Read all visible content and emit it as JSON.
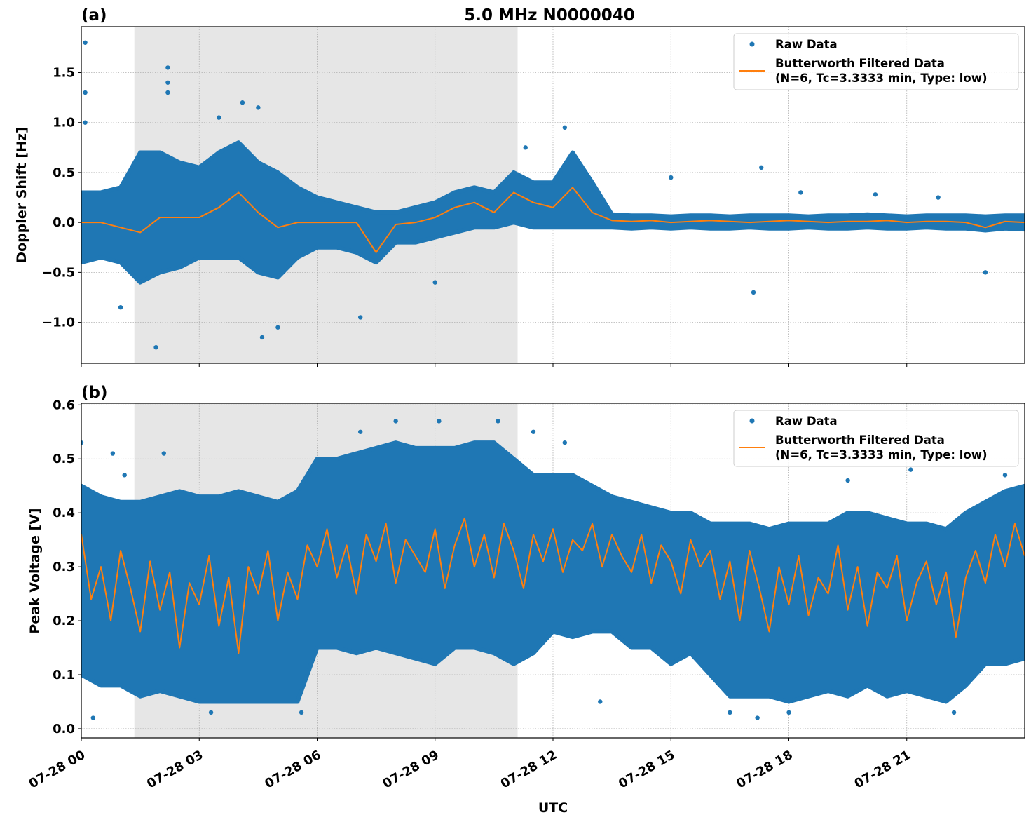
{
  "colors": {
    "raw": "#1f77b4",
    "filtered": "#ff7f0e",
    "shade": "#e6e6e6",
    "grid": "#b0b0b0"
  },
  "chart_data": [
    {
      "type": "scatter+line",
      "panel_label": "(a)",
      "title": "5.0 MHz N0000040",
      "xlabel": "",
      "ylabel": "Doppler Shift [Hz]",
      "xlim": [
        "07-28 00:00",
        "07-29 00:00"
      ],
      "ylim": [
        -1.41,
        1.96
      ],
      "yticks": [
        -1.0,
        -0.5,
        0.0,
        0.5,
        1.0,
        1.5
      ],
      "ytick_labels": [
        "−1.0",
        "−0.5",
        "0.0",
        "0.5",
        "1.0",
        "1.5"
      ],
      "grid": true,
      "shaded_interval": [
        "07-28 01:21",
        "07-28 11:06"
      ],
      "legend": {
        "position": "top-right",
        "entries": [
          "Raw Data",
          "Butterworth Filtered Data",
          "(N=6, Tc=3.3333 min, Type: low)"
        ]
      },
      "raw_band": {
        "time": [
          "07-28 00:00",
          "07-28 00:30",
          "07-28 01:00",
          "07-28 01:30",
          "07-28 02:00",
          "07-28 02:30",
          "07-28 03:00",
          "07-28 03:30",
          "07-28 04:00",
          "07-28 04:30",
          "07-28 05:00",
          "07-28 05:30",
          "07-28 06:00",
          "07-28 06:30",
          "07-28 07:00",
          "07-28 07:30",
          "07-28 08:00",
          "07-28 08:30",
          "07-28 09:00",
          "07-28 09:30",
          "07-28 10:00",
          "07-28 10:30",
          "07-28 11:00",
          "07-28 11:30",
          "07-28 12:00",
          "07-28 12:30",
          "07-28 13:00",
          "07-28 13:30",
          "07-28 14:00",
          "07-28 14:30",
          "07-28 15:00",
          "07-28 15:30",
          "07-28 16:00",
          "07-28 16:30",
          "07-28 17:00",
          "07-28 17:30",
          "07-28 18:00",
          "07-28 18:30",
          "07-28 19:00",
          "07-28 19:30",
          "07-28 20:00",
          "07-28 20:30",
          "07-28 21:00",
          "07-28 21:30",
          "07-28 22:00",
          "07-28 22:30",
          "07-28 23:00",
          "07-28 23:30",
          "07-29 00:00"
        ],
        "low": [
          -0.4,
          -0.35,
          -0.4,
          -0.6,
          -0.5,
          -0.45,
          -0.35,
          -0.35,
          -0.35,
          -0.5,
          -0.55,
          -0.35,
          -0.25,
          -0.25,
          -0.3,
          -0.4,
          -0.2,
          -0.2,
          -0.15,
          -0.1,
          -0.05,
          -0.05,
          0,
          -0.05,
          -0.05,
          -0.05,
          -0.05,
          -0.05,
          -0.06,
          -0.05,
          -0.06,
          -0.05,
          -0.06,
          -0.06,
          -0.05,
          -0.06,
          -0.06,
          -0.05,
          -0.06,
          -0.06,
          -0.05,
          -0.06,
          -0.06,
          -0.05,
          -0.06,
          -0.06,
          -0.08,
          -0.06,
          -0.07
        ],
        "high": [
          0.3,
          0.3,
          0.35,
          0.7,
          0.7,
          0.6,
          0.55,
          0.7,
          0.8,
          0.6,
          0.5,
          0.35,
          0.25,
          0.2,
          0.15,
          0.1,
          0.1,
          0.15,
          0.2,
          0.3,
          0.35,
          0.3,
          0.5,
          0.4,
          0.4,
          0.7,
          0.4,
          0.08,
          0.07,
          0.07,
          0.06,
          0.07,
          0.07,
          0.06,
          0.07,
          0.07,
          0.07,
          0.06,
          0.07,
          0.07,
          0.08,
          0.07,
          0.06,
          0.07,
          0.07,
          0.07,
          0.06,
          0.07,
          0.07
        ]
      },
      "raw_outliers": [
        [
          "07-28 00:06",
          1.8
        ],
        [
          "07-28 00:06",
          1.3
        ],
        [
          "07-28 00:06",
          1.0
        ],
        [
          "07-28 02:12",
          1.55
        ],
        [
          "07-28 02:12",
          1.4
        ],
        [
          "07-28 02:12",
          1.3
        ],
        [
          "07-28 03:30",
          1.05
        ],
        [
          "07-28 04:06",
          1.2
        ],
        [
          "07-28 04:30",
          1.15
        ],
        [
          "07-28 01:54",
          -1.25
        ],
        [
          "07-28 04:36",
          -1.15
        ],
        [
          "07-28 07:06",
          -0.95
        ],
        [
          "07-28 09:00",
          -0.6
        ],
        [
          "07-28 12:18",
          0.95
        ],
        [
          "07-28 11:18",
          0.75
        ],
        [
          "07-28 17:06",
          -0.7
        ],
        [
          "07-28 17:18",
          0.55
        ],
        [
          "07-28 18:18",
          0.3
        ],
        [
          "07-28 20:12",
          0.28
        ],
        [
          "07-28 23:00",
          -0.5
        ],
        [
          "07-28 15:00",
          0.45
        ],
        [
          "07-28 21:48",
          0.25
        ],
        [
          "07-28 01:00",
          -0.85
        ],
        [
          "07-28 05:00",
          -1.05
        ]
      ],
      "filtered": {
        "time": [
          "07-28 00:00",
          "07-28 00:30",
          "07-28 01:00",
          "07-28 01:30",
          "07-28 02:00",
          "07-28 02:30",
          "07-28 03:00",
          "07-28 03:30",
          "07-28 04:00",
          "07-28 04:30",
          "07-28 05:00",
          "07-28 05:30",
          "07-28 06:00",
          "07-28 06:30",
          "07-28 07:00",
          "07-28 07:30",
          "07-28 08:00",
          "07-28 08:30",
          "07-28 09:00",
          "07-28 09:30",
          "07-28 10:00",
          "07-28 10:30",
          "07-28 11:00",
          "07-28 11:30",
          "07-28 12:00",
          "07-28 12:30",
          "07-28 13:00",
          "07-28 13:30",
          "07-28 14:00",
          "07-28 14:30",
          "07-28 15:00",
          "07-28 15:30",
          "07-28 16:00",
          "07-28 16:30",
          "07-28 17:00",
          "07-28 17:30",
          "07-28 18:00",
          "07-28 18:30",
          "07-28 19:00",
          "07-28 19:30",
          "07-28 20:00",
          "07-28 20:30",
          "07-28 21:00",
          "07-28 21:30",
          "07-28 22:00",
          "07-28 22:30",
          "07-28 23:00",
          "07-28 23:30",
          "07-29 00:00"
        ],
        "values": [
          0,
          0,
          -0.05,
          -0.1,
          0.05,
          0.05,
          0.05,
          0.15,
          0.3,
          0.1,
          -0.05,
          0,
          0,
          0,
          0,
          -0.3,
          -0.02,
          0,
          0.05,
          0.15,
          0.2,
          0.1,
          0.3,
          0.2,
          0.15,
          0.35,
          0.1,
          0.02,
          0.01,
          0.02,
          0.0,
          0.01,
          0.02,
          0.01,
          0.0,
          0.01,
          0.02,
          0.01,
          0.0,
          0.01,
          0.01,
          0.02,
          0.0,
          0.01,
          0.01,
          0.0,
          -0.05,
          0.01,
          0.0
        ]
      }
    },
    {
      "type": "scatter+line",
      "panel_label": "(b)",
      "xlabel": "UTC",
      "ylabel": "Peak Voltage [V]",
      "xlim": [
        "07-28 00:00",
        "07-29 00:00"
      ],
      "ylim": [
        -0.017,
        0.603
      ],
      "yticks": [
        0.0,
        0.1,
        0.2,
        0.3,
        0.4,
        0.5,
        0.6
      ],
      "ytick_labels": [
        "0.0",
        "0.1",
        "0.2",
        "0.3",
        "0.4",
        "0.5",
        "0.6"
      ],
      "xticks": [
        "07-28 00:00",
        "07-28 03:00",
        "07-28 06:00",
        "07-28 09:00",
        "07-28 12:00",
        "07-28 15:00",
        "07-28 18:00",
        "07-28 21:00"
      ],
      "xtick_labels": [
        "07-28 00",
        "07-28 03",
        "07-28 06",
        "07-28 09",
        "07-28 12",
        "07-28 15",
        "07-28 18",
        "07-28 21"
      ],
      "grid": true,
      "shaded_interval": [
        "07-28 01:21",
        "07-28 11:06"
      ],
      "legend": {
        "position": "top-right",
        "entries": [
          "Raw Data",
          "Butterworth Filtered Data",
          "(N=6, Tc=3.3333 min, Type: low)"
        ]
      },
      "raw_band": {
        "time": [
          "07-28 00:00",
          "07-28 00:30",
          "07-28 01:00",
          "07-28 01:30",
          "07-28 02:00",
          "07-28 02:30",
          "07-28 03:00",
          "07-28 03:30",
          "07-28 04:00",
          "07-28 04:30",
          "07-28 05:00",
          "07-28 05:30",
          "07-28 06:00",
          "07-28 06:30",
          "07-28 07:00",
          "07-28 07:30",
          "07-28 08:00",
          "07-28 08:30",
          "07-28 09:00",
          "07-28 09:30",
          "07-28 10:00",
          "07-28 10:30",
          "07-28 11:00",
          "07-28 11:30",
          "07-28 12:00",
          "07-28 12:30",
          "07-28 13:00",
          "07-28 13:30",
          "07-28 14:00",
          "07-28 14:30",
          "07-28 15:00",
          "07-28 15:30",
          "07-28 16:00",
          "07-28 16:30",
          "07-28 17:00",
          "07-28 17:30",
          "07-28 18:00",
          "07-28 18:30",
          "07-28 19:00",
          "07-28 19:30",
          "07-28 20:00",
          "07-28 20:30",
          "07-28 21:00",
          "07-28 21:30",
          "07-28 22:00",
          "07-28 22:30",
          "07-28 23:00",
          "07-28 23:30",
          "07-29 00:00"
        ],
        "low": [
          0.1,
          0.08,
          0.08,
          0.06,
          0.07,
          0.06,
          0.05,
          0.05,
          0.05,
          0.05,
          0.05,
          0.05,
          0.15,
          0.15,
          0.14,
          0.15,
          0.14,
          0.13,
          0.12,
          0.15,
          0.15,
          0.14,
          0.12,
          0.14,
          0.18,
          0.17,
          0.18,
          0.18,
          0.15,
          0.15,
          0.12,
          0.14,
          0.1,
          0.06,
          0.06,
          0.06,
          0.05,
          0.06,
          0.07,
          0.06,
          0.08,
          0.06,
          0.07,
          0.06,
          0.05,
          0.08,
          0.12,
          0.12,
          0.13
        ],
        "high": [
          0.45,
          0.43,
          0.42,
          0.42,
          0.43,
          0.44,
          0.43,
          0.43,
          0.44,
          0.43,
          0.42,
          0.44,
          0.5,
          0.5,
          0.51,
          0.52,
          0.53,
          0.52,
          0.52,
          0.52,
          0.53,
          0.53,
          0.5,
          0.47,
          0.47,
          0.47,
          0.45,
          0.43,
          0.42,
          0.41,
          0.4,
          0.4,
          0.38,
          0.38,
          0.38,
          0.37,
          0.38,
          0.38,
          0.38,
          0.4,
          0.4,
          0.39,
          0.38,
          0.38,
          0.37,
          0.4,
          0.42,
          0.44,
          0.45
        ]
      },
      "raw_outliers": [
        [
          "07-28 00:00",
          0.53
        ],
        [
          "07-28 00:18",
          0.02
        ],
        [
          "07-28 00:48",
          0.51
        ],
        [
          "07-28 01:06",
          0.47
        ],
        [
          "07-28 02:06",
          0.51
        ],
        [
          "07-28 03:18",
          0.03
        ],
        [
          "07-28 05:36",
          0.03
        ],
        [
          "07-28 07:06",
          0.55
        ],
        [
          "07-28 08:00",
          0.57
        ],
        [
          "07-28 09:06",
          0.57
        ],
        [
          "07-28 10:36",
          0.57
        ],
        [
          "07-28 11:30",
          0.55
        ],
        [
          "07-28 12:18",
          0.53
        ],
        [
          "07-28 13:12",
          0.05
        ],
        [
          "07-28 16:30",
          0.03
        ],
        [
          "07-28 17:12",
          0.02
        ],
        [
          "07-28 18:00",
          0.03
        ],
        [
          "07-28 19:30",
          0.46
        ],
        [
          "07-28 21:06",
          0.48
        ],
        [
          "07-28 22:12",
          0.03
        ],
        [
          "07-28 23:30",
          0.47
        ]
      ],
      "filtered": {
        "time": [
          "07-28 00:00",
          "07-28 00:15",
          "07-28 00:30",
          "07-28 00:45",
          "07-28 01:00",
          "07-28 01:15",
          "07-28 01:30",
          "07-28 01:45",
          "07-28 02:00",
          "07-28 02:15",
          "07-28 02:30",
          "07-28 02:45",
          "07-28 03:00",
          "07-28 03:15",
          "07-28 03:30",
          "07-28 03:45",
          "07-28 04:00",
          "07-28 04:15",
          "07-28 04:30",
          "07-28 04:45",
          "07-28 05:00",
          "07-28 05:15",
          "07-28 05:30",
          "07-28 05:45",
          "07-28 06:00",
          "07-28 06:15",
          "07-28 06:30",
          "07-28 06:45",
          "07-28 07:00",
          "07-28 07:15",
          "07-28 07:30",
          "07-28 07:45",
          "07-28 08:00",
          "07-28 08:15",
          "07-28 08:30",
          "07-28 08:45",
          "07-28 09:00",
          "07-28 09:15",
          "07-28 09:30",
          "07-28 09:45",
          "07-28 10:00",
          "07-28 10:15",
          "07-28 10:30",
          "07-28 10:45",
          "07-28 11:00",
          "07-28 11:15",
          "07-28 11:30",
          "07-28 11:45",
          "07-28 12:00",
          "07-28 12:15",
          "07-28 12:30",
          "07-28 12:45",
          "07-28 13:00",
          "07-28 13:15",
          "07-28 13:30",
          "07-28 13:45",
          "07-28 14:00",
          "07-28 14:15",
          "07-28 14:30",
          "07-28 14:45",
          "07-28 15:00",
          "07-28 15:15",
          "07-28 15:30",
          "07-28 15:45",
          "07-28 16:00",
          "07-28 16:15",
          "07-28 16:30",
          "07-28 16:45",
          "07-28 17:00",
          "07-28 17:15",
          "07-28 17:30",
          "07-28 17:45",
          "07-28 18:00",
          "07-28 18:15",
          "07-28 18:30",
          "07-28 18:45",
          "07-28 19:00",
          "07-28 19:15",
          "07-28 19:30",
          "07-28 19:45",
          "07-28 20:00",
          "07-28 20:15",
          "07-28 20:30",
          "07-28 20:45",
          "07-28 21:00",
          "07-28 21:15",
          "07-28 21:30",
          "07-28 21:45",
          "07-28 22:00",
          "07-28 22:15",
          "07-28 22:30",
          "07-28 22:45",
          "07-28 23:00",
          "07-28 23:15",
          "07-28 23:30",
          "07-28 23:45",
          "07-29 00:00"
        ],
        "values": [
          0.36,
          0.24,
          0.3,
          0.2,
          0.33,
          0.26,
          0.18,
          0.31,
          0.22,
          0.29,
          0.15,
          0.27,
          0.23,
          0.32,
          0.19,
          0.28,
          0.14,
          0.3,
          0.25,
          0.33,
          0.2,
          0.29,
          0.24,
          0.34,
          0.3,
          0.37,
          0.28,
          0.34,
          0.25,
          0.36,
          0.31,
          0.38,
          0.27,
          0.35,
          0.32,
          0.29,
          0.37,
          0.26,
          0.34,
          0.39,
          0.3,
          0.36,
          0.28,
          0.38,
          0.33,
          0.26,
          0.36,
          0.31,
          0.37,
          0.29,
          0.35,
          0.33,
          0.38,
          0.3,
          0.36,
          0.32,
          0.29,
          0.36,
          0.27,
          0.34,
          0.31,
          0.25,
          0.35,
          0.3,
          0.33,
          0.24,
          0.31,
          0.2,
          0.33,
          0.26,
          0.18,
          0.3,
          0.23,
          0.32,
          0.21,
          0.28,
          0.25,
          0.34,
          0.22,
          0.3,
          0.19,
          0.29,
          0.26,
          0.32,
          0.2,
          0.27,
          0.31,
          0.23,
          0.29,
          0.17,
          0.28,
          0.33,
          0.27,
          0.36,
          0.3,
          0.38,
          0.32
        ]
      }
    }
  ]
}
